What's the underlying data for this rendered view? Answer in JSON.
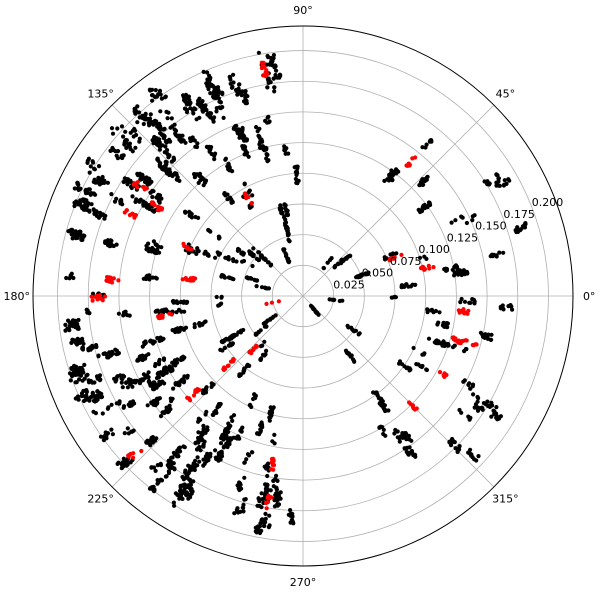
{
  "chart_data": {
    "type": "scatter",
    "projection": "polar",
    "title": "",
    "theta_unit": "degrees",
    "theta_zero": "east",
    "theta_direction": "counterclockwise",
    "theta_ticks": [
      0,
      45,
      90,
      135,
      180,
      225,
      270,
      315
    ],
    "theta_tick_labels": [
      "0°",
      "45°",
      "90°",
      "135°",
      "180°",
      "225°",
      "270°",
      "315°"
    ],
    "r_ticks": [
      0.025,
      0.05,
      0.075,
      0.1,
      0.125,
      0.15,
      0.175,
      0.2
    ],
    "r_tick_labels": [
      "0.025",
      "0.050",
      "0.075",
      "0.100",
      "0.125",
      "0.150",
      "0.175",
      "0.200"
    ],
    "r_label_angle_deg": 22.5,
    "rlim": [
      0,
      0.22
    ],
    "grid": true,
    "legend": "none",
    "colors": {
      "grid": "#b0b0b0",
      "frame": "#000000",
      "series_a": "#000000",
      "series_b": "#ff0000"
    },
    "series": [
      {
        "color": "#000000",
        "marker_size": "small",
        "note_of_distribution": "dense cloud over theta 90°–270°, sparser radial streaks over theta 270°–90° with a gap near 60°–90°",
        "clusters": [
          {
            "theta_range": [
              92,
              268
            ],
            "r_range": [
              0.005,
              0.2
            ],
            "density": 1.0
          },
          {
            "theta_range": [
              120,
              160
            ],
            "r_range": [
              0.12,
              0.205
            ],
            "density": 0.25
          },
          {
            "theta_range": [
              195,
              245
            ],
            "r_range": [
              0.12,
              0.2
            ],
            "density": 0.25
          },
          {
            "theta_range": [
              -60,
              60
            ],
            "r_range": [
              0.01,
              0.19
            ],
            "density": 0.35
          }
        ]
      },
      {
        "color": "#ff0000",
        "marker_size": "small",
        "note_of_distribution": "scattered among black points, fewer",
        "clusters": [
          {
            "theta_range": [
              95,
              265
            ],
            "r_range": [
              0.01,
              0.19
            ],
            "density": 0.12
          },
          {
            "theta_range": [
              -55,
              55
            ],
            "r_range": [
              0.03,
              0.18
            ],
            "density": 0.05
          }
        ]
      }
    ]
  }
}
